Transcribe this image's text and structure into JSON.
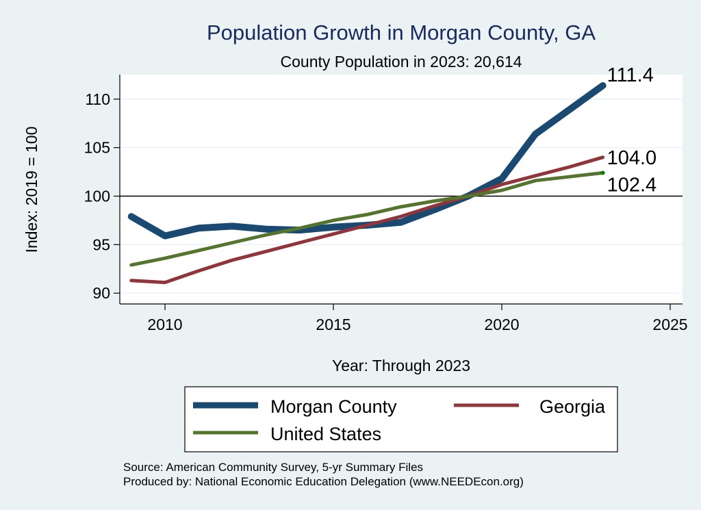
{
  "chart_data": {
    "type": "line",
    "title": "Population Growth in Morgan County, GA",
    "subtitle": "County Population in 2023: 20,614",
    "xlabel": "Year: Through 2023",
    "ylabel": "Index: 2019 = 100",
    "xlim": [
      2008.6,
      2025.4
    ],
    "ylim": [
      89,
      112.5
    ],
    "xticks": [
      2010,
      2015,
      2020,
      2025
    ],
    "xtick_labels": [
      "2010",
      "2015",
      "2020",
      "2025"
    ],
    "yticks": [
      90,
      95,
      100,
      105,
      110
    ],
    "ytick_labels": [
      "90",
      "95",
      "100",
      "105",
      "110"
    ],
    "reference_line": 100,
    "grid": true,
    "x": [
      2009,
      2010,
      2011,
      2012,
      2013,
      2014,
      2015,
      2016,
      2017,
      2018,
      2019,
      2020,
      2021,
      2022,
      2023
    ],
    "series": [
      {
        "name": "Morgan  County",
        "color": "#1a4a72",
        "values": [
          97.9,
          95.9,
          96.7,
          96.9,
          96.6,
          96.5,
          96.8,
          97.0,
          97.3,
          98.6,
          100.0,
          101.8,
          106.4,
          108.9,
          111.4
        ],
        "end_label": "111.4"
      },
      {
        "name": "Georgia",
        "color": "#90353b",
        "values": [
          91.3,
          91.1,
          92.3,
          93.4,
          94.3,
          95.2,
          96.1,
          97.0,
          97.9,
          99.0,
          100.0,
          101.2,
          102.1,
          103.0,
          104.0
        ],
        "end_label": "104.0"
      },
      {
        "name": "United States",
        "color": "#55752f",
        "values": [
          92.9,
          93.6,
          94.4,
          95.2,
          96.0,
          96.7,
          97.5,
          98.1,
          98.9,
          99.5,
          100.0,
          100.6,
          101.6,
          102.0,
          102.4
        ],
        "end_label": "102.4"
      }
    ],
    "legend": {
      "position": "bottom",
      "entries": [
        "Morgan  County",
        "Georgia",
        "United States"
      ]
    },
    "notes": [
      "Source: American Community Survey, 5-yr Summary Files",
      "Produced by: National Economic Education Delegation (www.NEEDEcon.org)"
    ]
  },
  "colors": {
    "background": "#eaf2f3",
    "plot_background": "#ffffff",
    "grid": "#eaf2f3",
    "title": "#1a2a5c",
    "us_end_marker": "#008000"
  }
}
